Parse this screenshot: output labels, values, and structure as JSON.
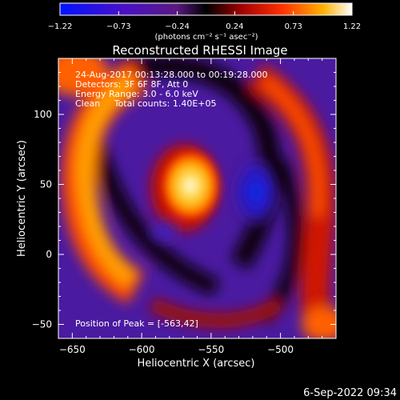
{
  "chart_data": {
    "type": "heatmap",
    "title": "Reconstructed RHESSI Image",
    "xlabel": "Heliocentric X (arcsec)",
    "ylabel": "Heliocentric Y (arcsec)",
    "xlim": [
      -660,
      -460
    ],
    "ylim": [
      -60,
      140
    ],
    "xticks": [
      -650,
      -600,
      -550,
      -500
    ],
    "xtick_labels": [
      "−650",
      "−600",
      "−550",
      "−500"
    ],
    "yticks": [
      -50,
      0,
      50,
      100
    ],
    "ytick_labels": [
      "−50",
      "0",
      "50",
      "100"
    ],
    "colorbar": {
      "min": -1.22,
      "max": 1.22,
      "ticks": [
        -1.22,
        -0.73,
        -0.24,
        0.24,
        0.73,
        1.22
      ],
      "tick_labels": [
        "−1.22",
        "−0.73",
        "−0.24",
        "0.24",
        "0.73",
        "1.22"
      ],
      "unit": "(photons cm⁻² s⁻¹ asec⁻²)"
    },
    "annotations": {
      "time": "24-Aug-2017 00:13:28.000 to 00:19:28.000",
      "detectors": "Detectors: 3F 6F 8F, Att 0",
      "energy": "Energy Range: 3.0 - 6.0 keV",
      "method": "Clean     Total counts: 1.40E+05",
      "peak": "Position of Peak = [-563,42]"
    },
    "peak": [
      -563,
      42
    ]
  },
  "footer": {
    "date": "6-Sep-2022 09:34"
  }
}
